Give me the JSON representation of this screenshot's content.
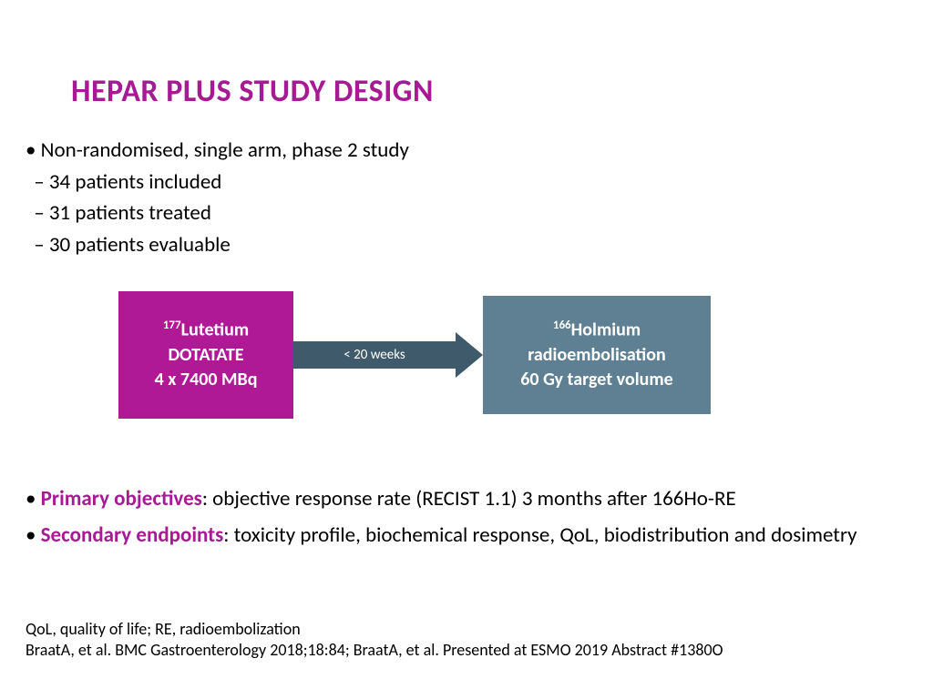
{
  "colors": {
    "accent": "#a61a94",
    "box1_bg": "#b01996",
    "box2_bg": "#5e8092",
    "arrow_bg": "#3f5a6a",
    "arrow_text": "#ffffff",
    "text": "#000000"
  },
  "title": "HEPAR PLUS STUDY DESIGN",
  "bullets": {
    "main": "Non-randomised, single arm, phase 2 study",
    "sub1": "34 patients included",
    "sub2": "31 patients treated",
    "sub3": "30 patients evaluable"
  },
  "diagram": {
    "box1": {
      "sup": "177",
      "line1a": "Lutetium",
      "line2": "DOTATATE",
      "line3": "4 x 7400 MBq"
    },
    "arrow_label": "< 20 weeks",
    "box2": {
      "sup": "166",
      "line1a": "Holmium",
      "line2": "radioembolisation",
      "line3": "60 Gy target volume"
    }
  },
  "objectives": {
    "primary_label": "Primary objectives",
    "primary_text": ": objective response rate (RECIST 1.1) 3 months after 166Ho-RE",
    "secondary_label": "Secondary endpoints",
    "secondary_text": ": toxicity profile, biochemical response, QoL, biodistribution and dosimetry"
  },
  "footer": {
    "line1": "QoL, quality of life; RE, radioembolization",
    "line2": "BraatA, et al. BMC Gastroenterology 2018;18:84; BraatA, et al. Presented at ESMO 2019 Abstract #1380O"
  }
}
